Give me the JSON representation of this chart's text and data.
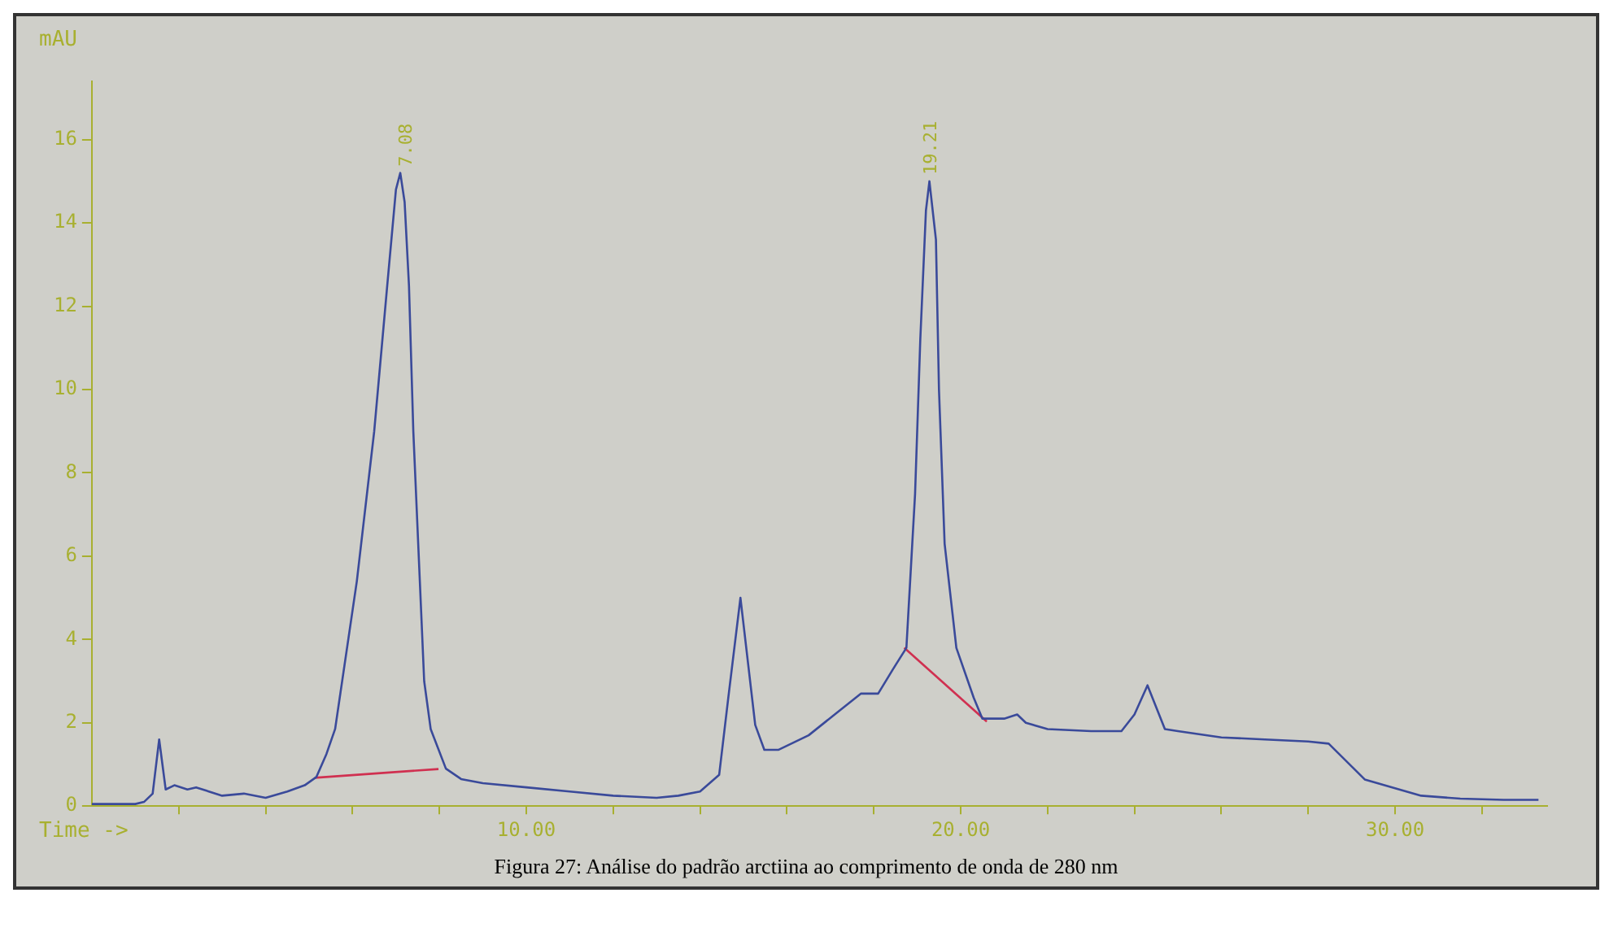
{
  "chart_data": {
    "type": "line",
    "xlabel": "Time ->",
    "ylabel": "mAU",
    "xlim": [
      0,
      33.5
    ],
    "ylim": [
      0,
      17.4
    ],
    "xticks": [
      {
        "value": 2,
        "label": null
      },
      {
        "value": 4,
        "label": null
      },
      {
        "value": 6,
        "label": null
      },
      {
        "value": 8,
        "label": null
      },
      {
        "value": 10,
        "label": "10.00"
      },
      {
        "value": 12,
        "label": null
      },
      {
        "value": 14,
        "label": null
      },
      {
        "value": 16,
        "label": null
      },
      {
        "value": 18,
        "label": null
      },
      {
        "value": 20,
        "label": "20.00"
      },
      {
        "value": 22,
        "label": null
      },
      {
        "value": 24,
        "label": null
      },
      {
        "value": 26,
        "label": null
      },
      {
        "value": 28,
        "label": null
      },
      {
        "value": 30,
        "label": "30.00"
      },
      {
        "value": 32,
        "label": null
      }
    ],
    "yticks": [
      0,
      2,
      4,
      6,
      8,
      10,
      12,
      14,
      16
    ],
    "marker": "none",
    "legend": false,
    "series": [
      {
        "color": "#3a4a9a",
        "x": [
          0,
          1.0,
          1.2,
          1.4,
          1.55,
          1.7,
          1.9,
          2.2,
          2.4,
          3.0,
          3.5,
          4.0,
          4.5,
          4.9,
          5.17,
          5.4,
          5.6,
          6.1,
          6.5,
          6.8,
          7.0,
          7.1,
          7.2,
          7.3,
          7.4,
          7.55,
          7.65,
          7.8,
          8.15,
          8.5,
          9,
          10,
          11,
          12,
          13,
          13.5,
          14.0,
          14.44,
          14.65,
          14.93,
          15.27,
          15.48,
          15.8,
          16.5,
          17.1,
          17.7,
          18.1,
          18.45,
          18.75,
          18.95,
          19.07,
          19.2,
          19.28,
          19.43,
          19.5,
          19.63,
          19.9,
          20.3,
          20.5,
          21.0,
          21.3,
          21.5,
          22.0,
          23,
          23.7,
          24.0,
          24.3,
          24.7,
          25,
          26,
          27,
          28,
          28.47,
          29.3,
          30.6,
          31.5,
          32.5,
          33.3
        ],
        "values": [
          0.05,
          0.05,
          0.1,
          0.3,
          1.6,
          0.4,
          0.5,
          0.4,
          0.45,
          0.25,
          0.3,
          0.2,
          0.35,
          0.5,
          0.7,
          1.25,
          1.85,
          5.4,
          9.0,
          12.5,
          14.8,
          15.2,
          14.5,
          12.5,
          9,
          5.4,
          3.0,
          1.85,
          0.9,
          0.65,
          0.55,
          0.45,
          0.35,
          0.25,
          0.2,
          0.25,
          0.35,
          0.75,
          2.6,
          5.0,
          1.95,
          1.35,
          1.35,
          1.7,
          2.2,
          2.7,
          2.7,
          3.3,
          3.8,
          7.5,
          11.2,
          14.3,
          15.0,
          13.6,
          10,
          6.3,
          3.8,
          2.6,
          2.1,
          2.1,
          2.2,
          2.0,
          1.85,
          1.8,
          1.8,
          2.2,
          2.9,
          1.85,
          1.8,
          1.65,
          1.6,
          1.55,
          1.5,
          0.64,
          0.25,
          0.18,
          0.15,
          0.15
        ]
      },
      {
        "color": "#d03050",
        "x": [
          5.13,
          7.98
        ],
        "values": [
          0.68,
          0.89
        ]
      },
      {
        "color": "#d03050",
        "x": [
          18.7,
          20.6
        ],
        "values": [
          3.8,
          2.03
        ]
      }
    ],
    "annotations": [
      {
        "text": "7.08",
        "x": 7.14,
        "y": 15.2
      },
      {
        "text": "19.21",
        "x": 19.21,
        "y": 15.0
      },
      "Figura 27: Análise do padrão arctiina ao comprimento de onda de 280 nm"
    ]
  }
}
